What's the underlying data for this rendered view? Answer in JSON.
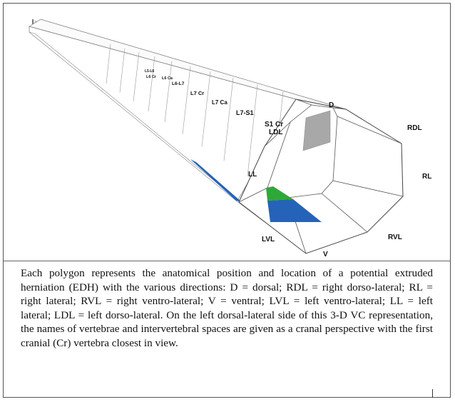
{
  "figure": {
    "vertebra_labels": [
      "L5-L6",
      "L6 Cr",
      "L6 Ca",
      "L6-L7",
      "L7 Cr",
      "L7 Ca",
      "L7-S1",
      "S1 Cr"
    ],
    "direction_labels": {
      "d": "D",
      "rdl": "RDL",
      "rl": "RL",
      "rvl": "RVL",
      "v": "V",
      "lvl": "LVL",
      "ll": "LL",
      "ldl": "LDL"
    },
    "colors": {
      "herniation_blue": "#2563b8",
      "herniation_green": "#2fa83a",
      "herniation_gray": "#a8a8a8",
      "highlight_yellow": "#e8d84a"
    }
  },
  "caption": "Each polygon represents the anatomical position and location of a potential extruded herniation (EDH) with the various directions: D = dorsal; RDL = right dorso-lateral; RL = right lateral; RVL = right ventro-lateral; V = ventral; LVL = left ventro-lateral; LL = left lateral; LDL = left dorso-lateral. On the left dorsal-lateral side of this 3-D VC representation, the names of vertebrae and intervertebral spaces are given as a cranal perspective with the first cranial (Cr) vertebra closest in view."
}
